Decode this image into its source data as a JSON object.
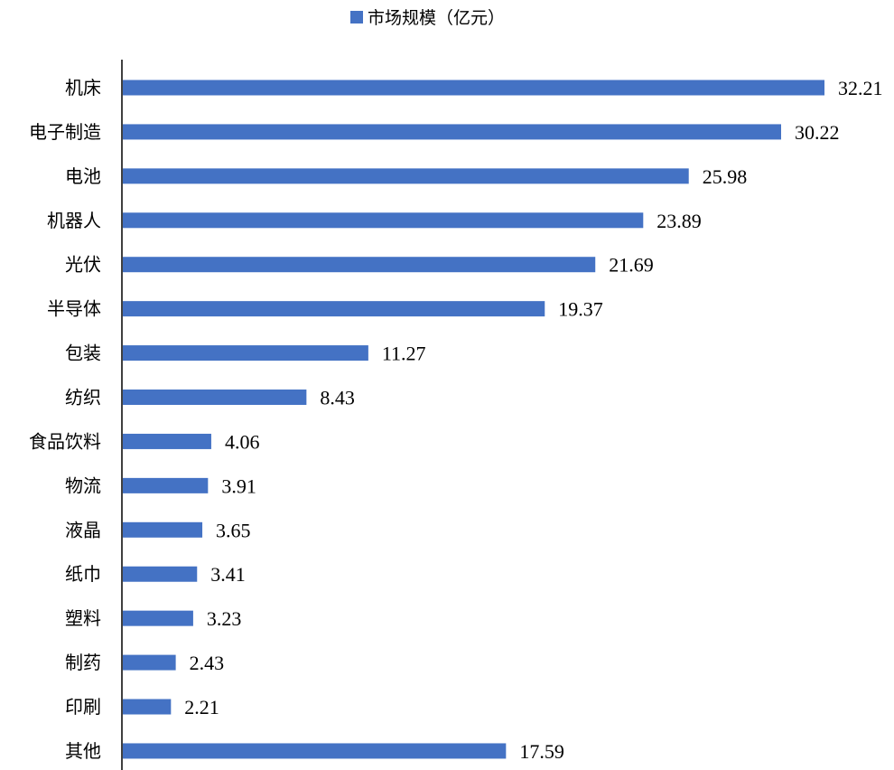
{
  "chart_data": {
    "type": "bar",
    "orientation": "horizontal",
    "categories": [
      "机床",
      "电子制造",
      "电池",
      "机器人",
      "光伏",
      "半导体",
      "包装",
      "纺织",
      "食品饮料",
      "物流",
      "液晶",
      "纸巾",
      "塑料",
      "制药",
      "印刷",
      "其他"
    ],
    "series": [
      {
        "name": "市场规模（亿元）",
        "color": "#4472C4",
        "values": [
          32.21,
          30.22,
          25.98,
          23.89,
          21.69,
          19.37,
          11.27,
          8.43,
          4.06,
          3.91,
          3.65,
          3.41,
          3.23,
          2.43,
          2.21,
          17.59
        ]
      }
    ],
    "value_labels": [
      "32.21",
      "30.22",
      "25.98",
      "23.89",
      "21.69",
      "19.37",
      "11.27",
      "8.43",
      "4.06",
      "3.91",
      "3.65",
      "3.41",
      "3.23",
      "2.43",
      "2.21",
      "17.59"
    ],
    "xlim": [
      0,
      32.21
    ],
    "legend_position": "top-center",
    "grid": false
  }
}
